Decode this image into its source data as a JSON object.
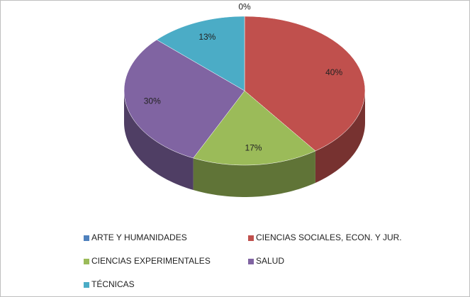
{
  "chart_data": {
    "type": "pie3d",
    "categories": [
      "ARTE Y HUMANIDADES",
      "CIENCIAS SOCIALES, ECON. Y JUR.",
      "CIENCIAS EXPERIMENTALES",
      "SALUD",
      "TÉCNICAS"
    ],
    "values": [
      0,
      40,
      17,
      30,
      13
    ],
    "value_labels": [
      "0%",
      "40%",
      "17%",
      "30%",
      "13%"
    ],
    "colors": [
      "#4f81bd",
      "#c0504d",
      "#9bbb59",
      "#8064a2",
      "#4bacc6"
    ],
    "legend": "bottom"
  }
}
